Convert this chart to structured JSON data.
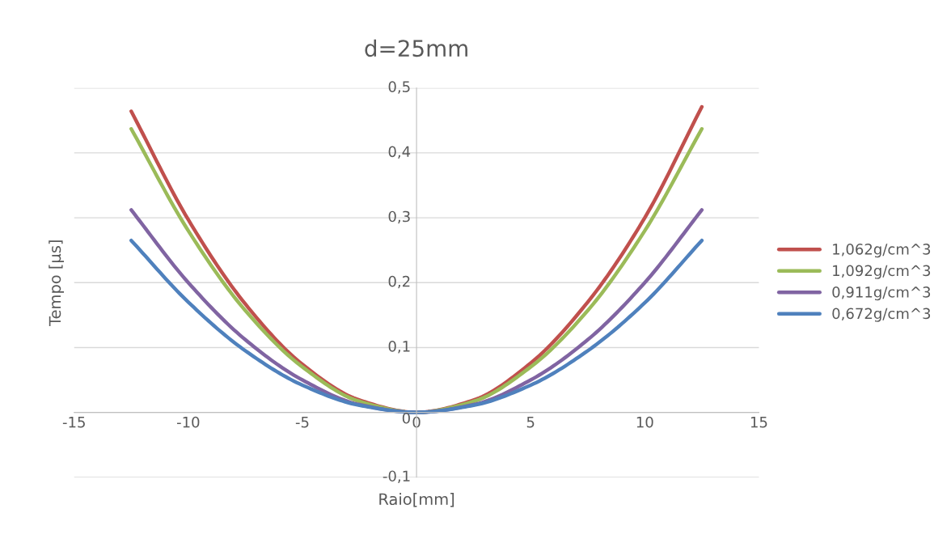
{
  "chart_data": {
    "type": "line",
    "title": "d=25mm",
    "xlabel": "Raio[mm]",
    "ylabel": "Tempo [µs]",
    "x": [
      -12.5,
      -10,
      -7.5,
      -5,
      -2.5,
      0,
      2.5,
      5,
      7.5,
      10,
      12.5
    ],
    "series": [
      {
        "name": "1,062g/cm^3",
        "color": "#c0504d",
        "values": [
          0.464,
          0.297,
          0.167,
          0.074,
          0.019,
          0,
          0.019,
          0.076,
          0.17,
          0.3,
          0.471
        ]
      },
      {
        "name": "1,092g/cm^3",
        "color": "#9bbb59",
        "values": [
          0.437,
          0.28,
          0.157,
          0.07,
          0.017,
          0,
          0.017,
          0.07,
          0.157,
          0.28,
          0.437
        ]
      },
      {
        "name": "0,911g/cm^3",
        "color": "#8064a2",
        "values": [
          0.312,
          0.2,
          0.112,
          0.05,
          0.012,
          0,
          0.012,
          0.05,
          0.112,
          0.2,
          0.312
        ]
      },
      {
        "name": "0,672g/cm^3",
        "color": "#4f81bd",
        "values": [
          0.265,
          0.17,
          0.095,
          0.042,
          0.011,
          0,
          0.011,
          0.042,
          0.095,
          0.169,
          0.265
        ]
      }
    ],
    "xlim": [
      -15,
      15
    ],
    "xticks": [
      -15,
      -10,
      -5,
      0,
      5,
      10,
      15
    ],
    "ylim": [
      -0.1,
      0.5
    ],
    "yticks": [
      {
        "value": -0.1,
        "label": "-0,1"
      },
      0,
      {
        "value": 0.1,
        "label": "0,1"
      },
      {
        "value": 0.2,
        "label": "0,2"
      },
      {
        "value": 0.3,
        "label": "0,3"
      },
      {
        "value": 0.4,
        "label": "0,4"
      },
      {
        "value": 0.5,
        "label": "0,5"
      }
    ],
    "grid": "y",
    "legend": "right",
    "marker": "none",
    "line_style": "solid"
  }
}
